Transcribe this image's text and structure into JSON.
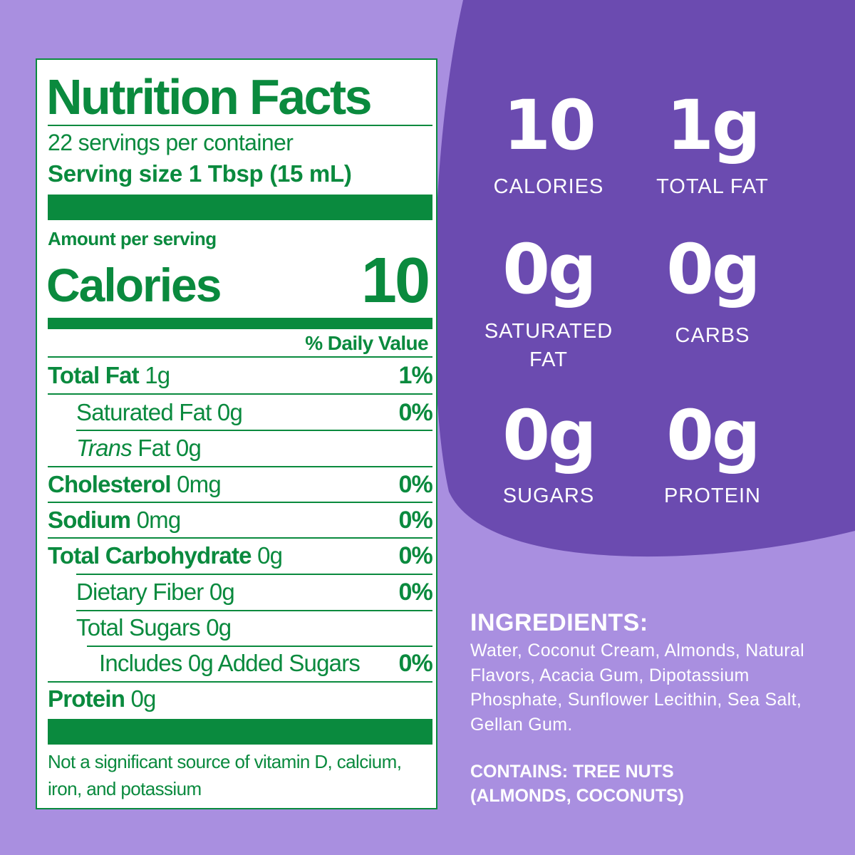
{
  "label": {
    "title": "Nutrition Facts",
    "servings": "22 servings per container",
    "serving_size": "Serving size 1 Tbsp (15 mL)",
    "amount_per_serving": "Amount per serving",
    "calories_label": "Calories",
    "calories_value": "10",
    "daily_value_header": "% Daily Value",
    "rows": [
      {
        "name": "Total Fat",
        "amount": "1g",
        "dv": "1%"
      },
      {
        "name": "Saturated Fat 0g",
        "dv": "0%"
      },
      {
        "name_italic": "Trans",
        "name": "Fat 0g"
      },
      {
        "name": "Cholesterol",
        "amount": "0mg",
        "dv": "0%"
      },
      {
        "name": "Sodium",
        "amount": "0mg",
        "dv": "0%"
      },
      {
        "name": "Total Carbohydrate",
        "amount": "0g",
        "dv": "0%"
      },
      {
        "name": "Dietary Fiber 0g",
        "dv": "0%"
      },
      {
        "name": "Total Sugars 0g"
      },
      {
        "name": "Includes 0g Added Sugars",
        "dv": "0%"
      },
      {
        "name": "Protein",
        "amount": "0g"
      }
    ],
    "footnote": "Not a significant source of vitamin D, calcium, iron, and potassium"
  },
  "highlights": [
    {
      "value": "10",
      "label": "CALORIES"
    },
    {
      "value": "1g",
      "label": "TOTAL FAT"
    },
    {
      "value": "0g",
      "label": "SATURATED FAT"
    },
    {
      "value": "0g",
      "label": "CARBS"
    },
    {
      "value": "0g",
      "label": "SUGARS"
    },
    {
      "value": "0g",
      "label": "PROTEIN"
    }
  ],
  "ingredients": {
    "heading": "INGREDIENTS:",
    "text": "Water, Coconut Cream, Almonds, Natural Flavors, Acacia Gum, Dipotassium Phosphate, Sunflower Lecithin, Sea Salt, Gellan Gum.",
    "contains": "CONTAINS: TREE NUTS (ALMONDS, COCONUTS)"
  }
}
